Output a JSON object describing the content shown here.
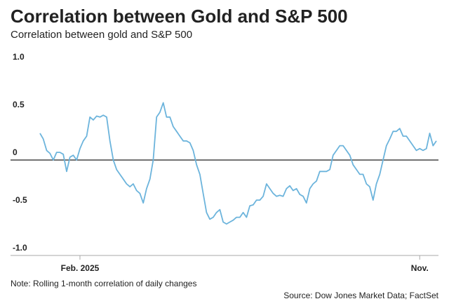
{
  "chart_data": {
    "type": "line",
    "title": "Correlation between Gold and S&P 500",
    "subtitle": "Correlation between gold and S&P 500",
    "note": "Note: Rolling 1-month correlation of daily changes",
    "source": "Source: Dow Jones Market Data; FactSet",
    "categories": [
      null,
      null,
      null,
      null,
      null,
      null,
      null,
      null,
      null,
      null,
      null,
      null,
      "Feb. 2025",
      null,
      null,
      null,
      null,
      null,
      null,
      null,
      null,
      null,
      null,
      null,
      null,
      null,
      null,
      null,
      null,
      null,
      null,
      null,
      null,
      null,
      null,
      null,
      null,
      null,
      null,
      null,
      null,
      null,
      null,
      null,
      null,
      null,
      null,
      null,
      null,
      null,
      null,
      null,
      null,
      null,
      null,
      null,
      null,
      null,
      null,
      null,
      null,
      null,
      null,
      null,
      null,
      null,
      null,
      null,
      null,
      null,
      null,
      null,
      null,
      null,
      null,
      null,
      null,
      null,
      null,
      null,
      null,
      null,
      null,
      null,
      null,
      null,
      null,
      null,
      null,
      null,
      null,
      null,
      null,
      null,
      null,
      null,
      null,
      null,
      null,
      null,
      null,
      null,
      null,
      null,
      null,
      null,
      null,
      null,
      null,
      null,
      null,
      null,
      null,
      null,
      "Nov.",
      null,
      null,
      null,
      null,
      null
    ],
    "values": [
      0.28,
      0.22,
      0.1,
      0.07,
      0,
      0.08,
      0.08,
      0.06,
      -0.12,
      0.03,
      0.05,
      0,
      0.12,
      0.2,
      0.25,
      0.45,
      0.42,
      0.46,
      0.45,
      0.47,
      0.45,
      0.2,
      0,
      -0.1,
      -0.15,
      -0.2,
      -0.25,
      -0.28,
      -0.25,
      -0.32,
      -0.35,
      -0.45,
      -0.3,
      -0.2,
      0,
      0.45,
      0.5,
      0.6,
      0.45,
      0.45,
      0.35,
      0.3,
      0.25,
      0.2,
      0.2,
      0.18,
      0.1,
      -0.05,
      -0.15,
      -0.35,
      -0.55,
      -0.62,
      -0.6,
      -0.55,
      -0.52,
      -0.65,
      -0.67,
      -0.65,
      -0.63,
      -0.6,
      -0.6,
      -0.55,
      -0.6,
      -0.48,
      -0.47,
      -0.42,
      -0.42,
      -0.38,
      -0.25,
      -0.3,
      -0.35,
      -0.38,
      -0.37,
      -0.38,
      -0.3,
      -0.27,
      -0.32,
      -0.3,
      -0.36,
      -0.38,
      -0.45,
      -0.3,
      -0.25,
      -0.22,
      -0.12,
      -0.12,
      -0.12,
      -0.1,
      0.05,
      0.1,
      0.15,
      0.15,
      0.1,
      0.05,
      -0.05,
      -0.1,
      -0.15,
      -0.15,
      -0.25,
      -0.28,
      -0.42,
      -0.25,
      -0.15,
      0,
      0.15,
      0.22,
      0.3,
      0.3,
      0.33,
      0.25,
      0.25,
      0.2,
      0.15,
      0.1,
      0.12,
      0.1,
      0.12,
      0.28,
      0.15,
      0.2
    ],
    "color": "#6cb4dc",
    "ylim": [
      -1,
      1
    ],
    "yticks": [
      {
        "value": 1,
        "label": "1.0"
      },
      0.5,
      0,
      -0.5,
      {
        "value": -1,
        "label": "-1.0"
      }
    ],
    "zero_line": true
  }
}
